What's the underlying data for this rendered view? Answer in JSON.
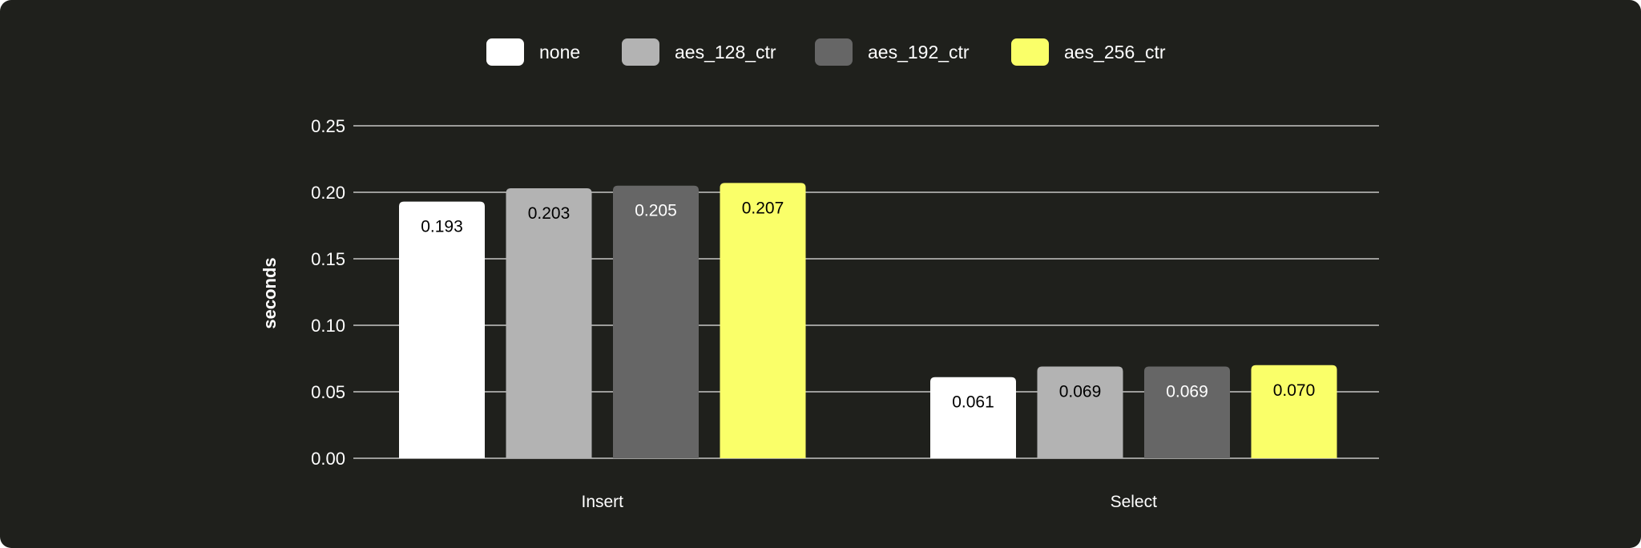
{
  "chart_data": {
    "type": "bar",
    "categories": [
      "Insert",
      "Select"
    ],
    "series": [
      {
        "name": "none",
        "color": "#ffffff",
        "label_color": "#000000",
        "values": [
          0.193,
          0.061
        ]
      },
      {
        "name": "aes_128_ctr",
        "color": "#b3b3b3",
        "label_color": "#000000",
        "values": [
          0.203,
          0.069
        ]
      },
      {
        "name": "aes_192_ctr",
        "color": "#666666",
        "label_color": "#ffffff",
        "values": [
          0.205,
          0.069
        ]
      },
      {
        "name": "aes_256_ctr",
        "color": "#faff69",
        "label_color": "#000000",
        "values": [
          0.207,
          0.07
        ]
      }
    ],
    "value_labels": [
      [
        "0.193",
        "0.061"
      ],
      [
        "0.203",
        "0.069"
      ],
      [
        "0.205",
        "0.069"
      ],
      [
        "0.207",
        "0.070"
      ]
    ],
    "title": "",
    "xlabel": "",
    "ylabel": "seconds",
    "ylim": [
      0,
      0.25
    ],
    "yticks": [
      "0.00",
      "0.05",
      "0.10",
      "0.15",
      "0.20",
      "0.25"
    ],
    "grid": true,
    "legend_position": "top-center"
  }
}
